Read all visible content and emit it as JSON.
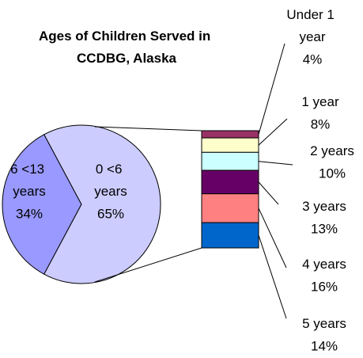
{
  "chart_data": {
    "type": "pie-of-bar",
    "title": "Ages of Children Served in CCDBG, Alaska",
    "pie": {
      "categories": [
        "6 <13 years",
        "0 <6 years"
      ],
      "values": [
        34,
        65
      ],
      "value_labels": [
        "34%",
        "65%"
      ],
      "colors": [
        "#9999ff",
        "#ccccff"
      ]
    },
    "bar": {
      "categories": [
        "Under 1 year",
        "1 year",
        "2 years",
        "3 years",
        "4 years",
        "5 years"
      ],
      "values": [
        4,
        8,
        10,
        13,
        16,
        14
      ],
      "value_labels": [
        "4%",
        "8%",
        "10%",
        "13%",
        "16%",
        "14%"
      ],
      "colors": [
        "#993366",
        "#ffffcc",
        "#ccffff",
        "#660066",
        "#ff8080",
        "#0066cc"
      ]
    }
  }
}
